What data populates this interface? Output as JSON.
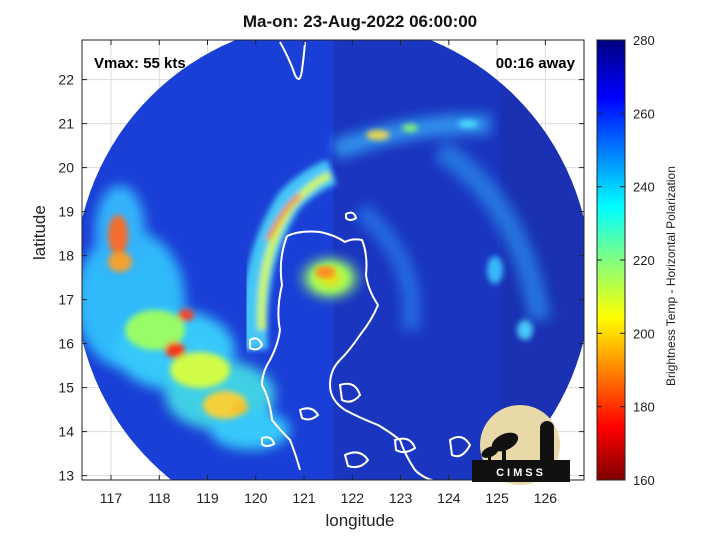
{
  "title": "Ma-on: 23-Aug-2022 06:00:00",
  "annotations": {
    "vmax": "Vmax: 55 kts",
    "away": "00:16 away"
  },
  "axes": {
    "xlabel": "longitude",
    "ylabel": "latitude",
    "x_ticks": [
      "117",
      "118",
      "119",
      "120",
      "121",
      "122",
      "123",
      "124",
      "125",
      "126"
    ],
    "y_ticks": [
      "22",
      "21",
      "20",
      "19",
      "18",
      "17",
      "16",
      "15",
      "14",
      "13"
    ],
    "xlim": [
      116.4,
      126.8
    ],
    "ylim": [
      12.9,
      22.9
    ]
  },
  "colorbar": {
    "label": "Brightness Temp - Horizontal Polarization",
    "ticks": [
      "280",
      "260",
      "240",
      "220",
      "200",
      "180",
      "160"
    ],
    "range": [
      160,
      280
    ],
    "colormap": "jet"
  },
  "logo": {
    "text": "CIMSS"
  },
  "colors": {
    "swath_base": "#1a3fd6",
    "land_outline": "#ffffff",
    "axis": "#222222"
  }
}
